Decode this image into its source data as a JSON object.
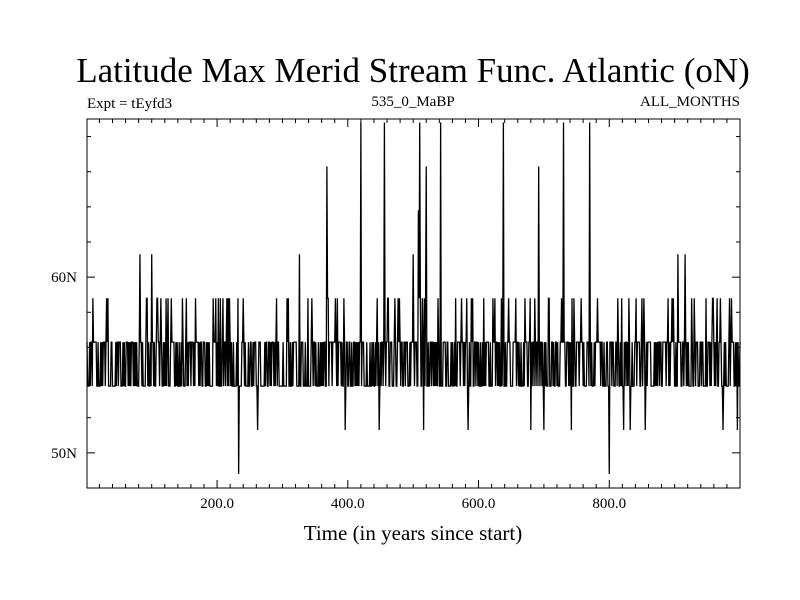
{
  "chart_data": {
    "type": "line",
    "title": "Latitude Max Merid Stream Func. Atlantic (oN)",
    "subtitle_left": "Expt = tEyfd3",
    "subtitle_center": "535_0_MaBP",
    "subtitle_right": "ALL_MONTHS",
    "xlabel": "Time (in years since start)",
    "ylabel": "",
    "xlim": [
      1,
      1000
    ],
    "ylim": [
      48,
      69
    ],
    "x_ticks": [
      {
        "value": 200,
        "label": "200.0"
      },
      {
        "value": 400,
        "label": "400.0"
      },
      {
        "value": 600,
        "label": "600.0"
      },
      {
        "value": 800,
        "label": "800.0"
      }
    ],
    "y_ticks": [
      {
        "value": 50,
        "label": "50N"
      },
      {
        "value": 60,
        "label": "60N"
      }
    ],
    "series": [
      {
        "name": "latitude_max_merid_stream_func_atlantic",
        "base_levels": [
          53.8,
          56.3
        ],
        "upper_level": 58.8,
        "spikes": [
          {
            "x": 82,
            "y": 61.3
          },
          {
            "x": 100,
            "y": 61.3
          },
          {
            "x": 233,
            "y": 48.8
          },
          {
            "x": 262,
            "y": 51.3
          },
          {
            "x": 326,
            "y": 61.3
          },
          {
            "x": 368,
            "y": 66.3
          },
          {
            "x": 396,
            "y": 51.3
          },
          {
            "x": 420,
            "y": 68.8
          },
          {
            "x": 448,
            "y": 51.3
          },
          {
            "x": 456,
            "y": 68.8
          },
          {
            "x": 500,
            "y": 61.3
          },
          {
            "x": 508,
            "y": 63.8
          },
          {
            "x": 510,
            "y": 68.8
          },
          {
            "x": 516,
            "y": 51.3
          },
          {
            "x": 520,
            "y": 66.3
          },
          {
            "x": 542,
            "y": 68.8
          },
          {
            "x": 584,
            "y": 51.3
          },
          {
            "x": 638,
            "y": 68.8
          },
          {
            "x": 680,
            "y": 51.3
          },
          {
            "x": 692,
            "y": 66.3
          },
          {
            "x": 700,
            "y": 51.3
          },
          {
            "x": 730,
            "y": 68.8
          },
          {
            "x": 742,
            "y": 51.3
          },
          {
            "x": 770,
            "y": 68.8
          },
          {
            "x": 800,
            "y": 48.8
          },
          {
            "x": 822,
            "y": 51.3
          },
          {
            "x": 832,
            "y": 51.3
          },
          {
            "x": 855,
            "y": 51.3
          },
          {
            "x": 905,
            "y": 61.3
          },
          {
            "x": 916,
            "y": 61.3
          },
          {
            "x": 974,
            "y": 51.3
          },
          {
            "x": 996,
            "y": 51.3
          }
        ]
      }
    ]
  }
}
